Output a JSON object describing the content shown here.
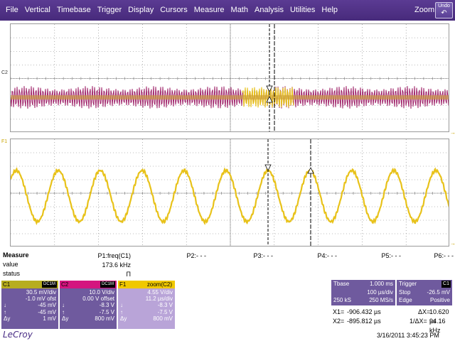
{
  "menu": {
    "items": [
      "File",
      "Vertical",
      "Timebase",
      "Trigger",
      "Display",
      "Cursors",
      "Measure",
      "Math",
      "Analysis",
      "Utilities",
      "Help"
    ],
    "zoom_label": "Zoom",
    "undo_label": "Undo"
  },
  "traces": {
    "c2_label": "C2",
    "f1_label": "F1"
  },
  "measure": {
    "title": "Measure",
    "row_value": "value",
    "row_status": "status",
    "params": [
      {
        "name": "P1:freq(C1)",
        "value": "173.6 kHz",
        "status": "Π"
      },
      {
        "name": "P2:- - -",
        "value": "",
        "status": ""
      },
      {
        "name": "P3:- - -",
        "value": "",
        "status": ""
      },
      {
        "name": "P4:- - -",
        "value": "",
        "status": ""
      },
      {
        "name": "P5:- - -",
        "value": "",
        "status": ""
      },
      {
        "name": "P6:- - -",
        "value": "",
        "status": ""
      }
    ]
  },
  "channels": {
    "c1": {
      "name": "C1",
      "coupling": "DC1M",
      "vdiv": "30.5 mV/div",
      "offset": "-1.0 mV ofst",
      "lab1": "↓",
      "v1": "-45 mV",
      "lab2": "↑",
      "v2": "-45 mV",
      "lab3": "Δy",
      "v3": "1 mV"
    },
    "c2": {
      "name": "C2",
      "coupling": "DC1M",
      "vdiv": "10.0 V/div",
      "offset": "0.00 V offset",
      "lab1": "↓",
      "v1": "-8.3 V",
      "lab2": "↑",
      "v2": "-7.5 V",
      "lab3": "Δy",
      "v3": "800 mV"
    },
    "f1": {
      "name": "F1",
      "coupling": "zoom(C2)",
      "vdiv": "4.55 V/div",
      "offset": "11.2 µs/div",
      "lab1": "↓",
      "v1": "-8.3 V",
      "lab2": "↑",
      "v2": "-7.5 V",
      "lab3": "Δy",
      "v3": "800 mV"
    }
  },
  "timebase": {
    "label": "Tbase",
    "value": "1.000 ms",
    "tdiv": "100 µs/div",
    "samples": "250 kS",
    "rate": "250 MS/s"
  },
  "trigger": {
    "label": "Trigger",
    "source": "C1",
    "mode": "Stop",
    "level": "-26.5 mV",
    "type": "Edge",
    "slope": "Positive"
  },
  "cursors": {
    "x1_label": "X1=",
    "x1": "-906.432 µs",
    "dx_label": "ΔX=",
    "dx": "10.620 µs",
    "x2_label": "X2=",
    "x2": "-895.812 µs",
    "inv_dx_label": "1/ΔX=",
    "inv_dx": "94.16 kHz"
  },
  "footer": {
    "logo": "LeCroy",
    "datetime": "3/16/2011 3:45:23 PM"
  },
  "colors": {
    "menu_bg": "#472a7b",
    "c1_trace": "#e8c21a",
    "c2_trace": "#a0266b",
    "grid_line": "#7a7a7a",
    "cursor_line": "#000000"
  }
}
